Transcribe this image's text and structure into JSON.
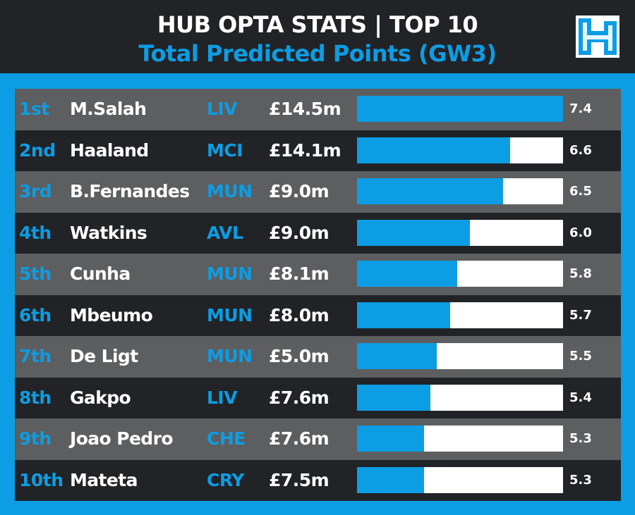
{
  "header": {
    "title_line1": "HUB OPTA STATS | TOP 10",
    "title_line2": "Total Predicted Points (GW3)",
    "logo_icon": "fantasy-football-hub-logo-icon"
  },
  "colors": {
    "accent": "#0c9de4",
    "header_bg": "#212326",
    "row_light": "#5d5e60",
    "row_dark": "#212326",
    "bar_track": "#ffffff",
    "text": "#ffffff"
  },
  "chart_data": {
    "type": "bar",
    "orientation": "horizontal",
    "title": "HUB OPTA STATS | TOP 10",
    "subtitle": "Total Predicted Points (GW3)",
    "xlim": [
      0,
      7.4
    ],
    "categories": [
      "M.Salah",
      "Haaland",
      "B.Fernandes",
      "Watkins",
      "Cunha",
      "Mbeumo",
      "De Ligt",
      "Gakpo",
      "Joao Pedro",
      "Mateta"
    ],
    "values": [
      7.4,
      6.6,
      6.5,
      6.0,
      5.8,
      5.7,
      5.5,
      5.4,
      5.3,
      5.3
    ],
    "rows": [
      {
        "rank": "1st",
        "name": "M.Salah",
        "team": "LIV",
        "price": "£14.5m",
        "value": 7.4,
        "label": "7.4"
      },
      {
        "rank": "2nd",
        "name": "Haaland",
        "team": "MCI",
        "price": "£14.1m",
        "value": 6.6,
        "label": "6.6"
      },
      {
        "rank": "3rd",
        "name": "B.Fernandes",
        "team": "MUN",
        "price": "£9.0m",
        "value": 6.5,
        "label": "6.5"
      },
      {
        "rank": "4th",
        "name": "Watkins",
        "team": "AVL",
        "price": "£9.0m",
        "value": 6.0,
        "label": "6.0"
      },
      {
        "rank": "5th",
        "name": "Cunha",
        "team": "MUN",
        "price": "£8.1m",
        "value": 5.8,
        "label": "5.8"
      },
      {
        "rank": "6th",
        "name": "Mbeumo",
        "team": "MUN",
        "price": "£8.0m",
        "value": 5.7,
        "label": "5.7"
      },
      {
        "rank": "7th",
        "name": "De Ligt",
        "team": "MUN",
        "price": "£5.0m",
        "value": 5.5,
        "label": "5.5"
      },
      {
        "rank": "8th",
        "name": "Gakpo",
        "team": "LIV",
        "price": "£7.6m",
        "value": 5.4,
        "label": "5.4"
      },
      {
        "rank": "9th",
        "name": "Joao Pedro",
        "team": "CHE",
        "price": "£7.6m",
        "value": 5.3,
        "label": "5.3"
      },
      {
        "rank": "10th",
        "name": "Mateta",
        "team": "CRY",
        "price": "£7.5m",
        "value": 5.3,
        "label": "5.3"
      }
    ]
  }
}
